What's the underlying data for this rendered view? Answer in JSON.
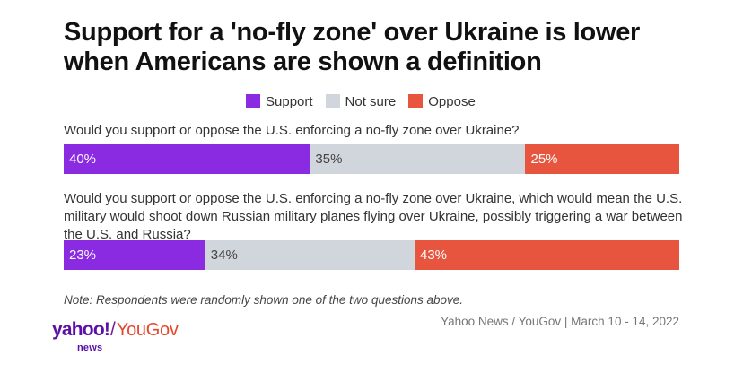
{
  "title": "Support for a 'no-fly zone' over Ukraine is lower when Americans are shown a definition",
  "note": "Note: Respondents were randomly shown one of the two questions above.",
  "source": "Yahoo News / YouGov | March 10 - 14, 2022",
  "logo": {
    "yahoo": "yahoo!",
    "news": "news",
    "slash": "/",
    "yougov": "YouGov"
  },
  "colors": {
    "support": "#8a2be2",
    "not_sure": "#d1d5dc",
    "oppose": "#e8553e"
  },
  "chart_data": {
    "type": "bar",
    "orientation": "horizontal-stacked",
    "title": "Support for a 'no-fly zone' over Ukraine is lower when Americans are shown a definition",
    "legend_placement": "top-center",
    "categories": [
      "Would you support or oppose the U.S. enforcing a no-fly zone over Ukraine?",
      "Would you support or oppose the U.S. enforcing a no-fly zone over Ukraine, which would mean the U.S. military would shoot down Russian military planes flying over Ukraine, possibly triggering a war between the U.S. and Russia?"
    ],
    "series": [
      {
        "name": "Support",
        "values": [
          40,
          23
        ],
        "labels": [
          "40%",
          "23%"
        ],
        "color": "#8a2be2"
      },
      {
        "name": "Not sure",
        "values": [
          35,
          34
        ],
        "labels": [
          "35%",
          "34%"
        ],
        "color": "#d1d5dc"
      },
      {
        "name": "Oppose",
        "values": [
          25,
          43
        ],
        "labels": [
          "25%",
          "43%"
        ],
        "color": "#e8553e"
      }
    ]
  }
}
